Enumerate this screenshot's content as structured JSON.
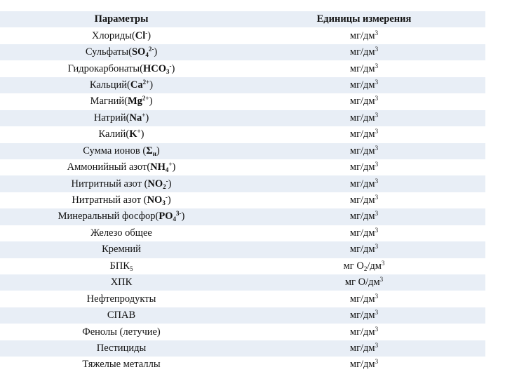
{
  "table": {
    "headers": [
      "Параметры",
      "Единицы измерения"
    ],
    "rows": [
      {
        "pre": "Хлориды(",
        "formula": [
          {
            "t": "Cl"
          },
          {
            "sup": "-"
          }
        ],
        "post": ")",
        "unit": [
          {
            "t": "мг/дм"
          },
          {
            "sup": "3"
          }
        ]
      },
      {
        "pre": "Сульфаты(",
        "formula": [
          {
            "t": "SO"
          },
          {
            "sub": "4"
          },
          {
            "sup": "2-"
          }
        ],
        "post": ")",
        "unit": [
          {
            "t": "мг/дм"
          },
          {
            "sup": "3"
          }
        ]
      },
      {
        "pre": "Гидрокарбонаты(",
        "formula": [
          {
            "t": "HCO"
          },
          {
            "sub": "3"
          },
          {
            "sup": "-"
          }
        ],
        "post": ")",
        "unit": [
          {
            "t": "мг/дм"
          },
          {
            "sup": "3"
          }
        ]
      },
      {
        "pre": "Кальций(",
        "formula": [
          {
            "t": "Ca"
          },
          {
            "sup": "2+"
          }
        ],
        "post": ")",
        "unit": [
          {
            "t": "мг/дм"
          },
          {
            "sup": "3"
          }
        ]
      },
      {
        "pre": "Магний(",
        "formula": [
          {
            "t": "Mg"
          },
          {
            "sup": "2+"
          }
        ],
        "post": ")",
        "unit": [
          {
            "t": "мг/дм"
          },
          {
            "sup": "3"
          }
        ]
      },
      {
        "pre": "Натрий(",
        "formula": [
          {
            "t": "Na"
          },
          {
            "sup": "+"
          }
        ],
        "post": ")",
        "unit": [
          {
            "t": "мг/дм"
          },
          {
            "sup": "3"
          }
        ]
      },
      {
        "pre": "Калий(",
        "formula": [
          {
            "t": "K"
          },
          {
            "sup": "+"
          }
        ],
        "post": ")",
        "unit": [
          {
            "t": "мг/дм"
          },
          {
            "sup": "3"
          }
        ]
      },
      {
        "pre": "Сумма ионов (",
        "formula": [
          {
            "t": "Σ"
          },
          {
            "sub": "и"
          }
        ],
        "post": ")",
        "unit": [
          {
            "t": "мг/дм"
          },
          {
            "sup": "3"
          }
        ]
      },
      {
        "pre": "Аммонийный азот(",
        "formula": [
          {
            "t": "NH"
          },
          {
            "sub": "4"
          },
          {
            "sup": "+"
          }
        ],
        "post": ")",
        "unit": [
          {
            "t": "мг/дм"
          },
          {
            "sup": "3"
          }
        ]
      },
      {
        "pre": "Нитритный азот (",
        "formula": [
          {
            "t": "NO"
          },
          {
            "sub": "2"
          },
          {
            "sup": "-"
          }
        ],
        "post": ")",
        "unit": [
          {
            "t": "мг/дм"
          },
          {
            "sup": "3"
          }
        ]
      },
      {
        "pre": "Нитратный азот (",
        "formula": [
          {
            "t": "NO"
          },
          {
            "sub": "3"
          },
          {
            "sup": "-"
          }
        ],
        "post": ")",
        "unit": [
          {
            "t": "мг/дм"
          },
          {
            "sup": "3"
          }
        ]
      },
      {
        "pre": "Минеральный фосфор(",
        "formula": [
          {
            "t": "PO"
          },
          {
            "sub": "4"
          },
          {
            "sup": "3-"
          }
        ],
        "post": ")",
        "unit": [
          {
            "t": "мг/дм"
          },
          {
            "sup": "3"
          }
        ]
      },
      {
        "pre": "Железо общее",
        "formula": [],
        "post": "",
        "unit": [
          {
            "t": "мг/дм"
          },
          {
            "sup": "3"
          }
        ]
      },
      {
        "pre": "Кремний",
        "formula": [],
        "post": "",
        "unit": [
          {
            "t": "мг/дм"
          },
          {
            "sup": "3"
          }
        ]
      },
      {
        "pre": "БПК",
        "formula": [
          {
            "sub": "5"
          }
        ],
        "post": "",
        "plain": true,
        "unit": [
          {
            "t": "мг O"
          },
          {
            "sub": "2"
          },
          {
            "t": "/дм"
          },
          {
            "sup": "3"
          }
        ]
      },
      {
        "pre": "ХПК",
        "formula": [],
        "post": "",
        "unit": [
          {
            "t": "мг O/дм"
          },
          {
            "sup": "3"
          }
        ]
      },
      {
        "pre": "Нефтепродукты",
        "formula": [],
        "post": "",
        "unit": [
          {
            "t": "мг/дм"
          },
          {
            "sup": "3"
          }
        ]
      },
      {
        "pre": "СПАВ",
        "formula": [],
        "post": "",
        "unit": [
          {
            "t": "мг/дм"
          },
          {
            "sup": "3"
          }
        ]
      },
      {
        "pre": "Фенолы (летучие)",
        "formula": [],
        "post": "",
        "unit": [
          {
            "t": "мг/дм"
          },
          {
            "sup": "3"
          }
        ]
      },
      {
        "pre": "Пестициды",
        "formula": [],
        "post": "",
        "unit": [
          {
            "t": "мг/дм"
          },
          {
            "sup": "3"
          }
        ]
      },
      {
        "pre": "Тяжелые металлы",
        "formula": [],
        "post": "",
        "unit": [
          {
            "t": "мг/дм"
          },
          {
            "sup": "3"
          }
        ]
      }
    ]
  }
}
